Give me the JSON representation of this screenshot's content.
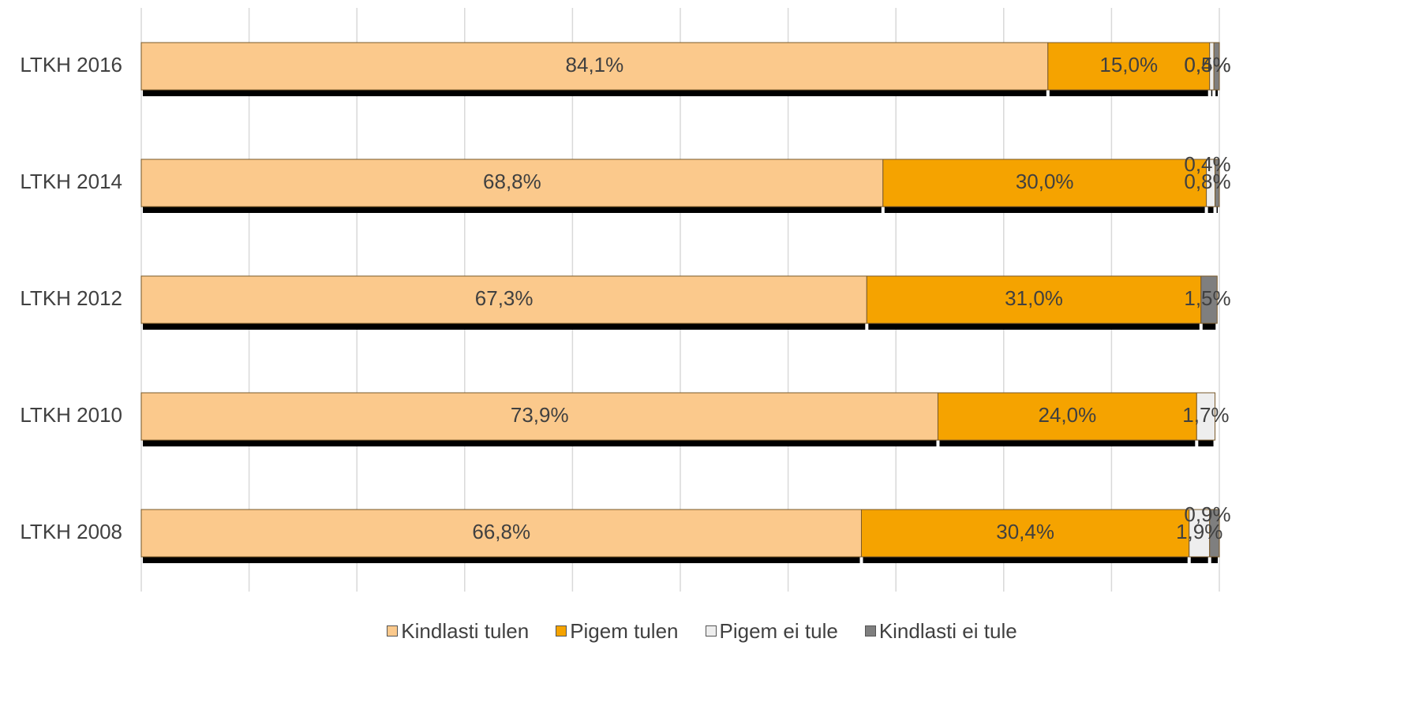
{
  "chart_data": {
    "type": "stacked-bar-horizontal",
    "categories": [
      "LTKH 2016",
      "LTKH 2014",
      "LTKH 2012",
      "LTKH 2010",
      "LTKH 2008"
    ],
    "series": [
      {
        "name": "Kindlasti tulen",
        "color": "#fbc98c",
        "values": [
          84.1,
          68.8,
          67.3,
          73.9,
          66.8
        ],
        "value_labels": [
          "84,1%",
          "68,8%",
          "67,3%",
          "73,9%",
          "66,8%"
        ]
      },
      {
        "name": "Pigem tulen",
        "color": "#f5a300",
        "values": [
          15.0,
          30.0,
          31.0,
          24.0,
          30.4
        ],
        "value_labels": [
          "15,0%",
          "30,0%",
          "31,0%",
          "24,0%",
          "30,4%"
        ]
      },
      {
        "name": "Pigem ei tule",
        "color": "#eeeeee",
        "values": [
          0.4,
          0.8,
          null,
          1.7,
          1.9
        ],
        "value_labels": [
          "0,4%",
          "0,8%",
          null,
          "1,7%",
          "1,9%"
        ]
      },
      {
        "name": "Kindlasti ei tule",
        "color": "#7f7f7f",
        "values": [
          0.5,
          0.4,
          1.5,
          null,
          0.9
        ],
        "value_labels": [
          "0,5%",
          "0,4%",
          "1,5%",
          null,
          "0,9%"
        ]
      }
    ],
    "xlim": [
      0,
      100
    ],
    "xticks": [
      0,
      10,
      20,
      30,
      40,
      50,
      60,
      70,
      80,
      90,
      100
    ],
    "grid": true
  }
}
